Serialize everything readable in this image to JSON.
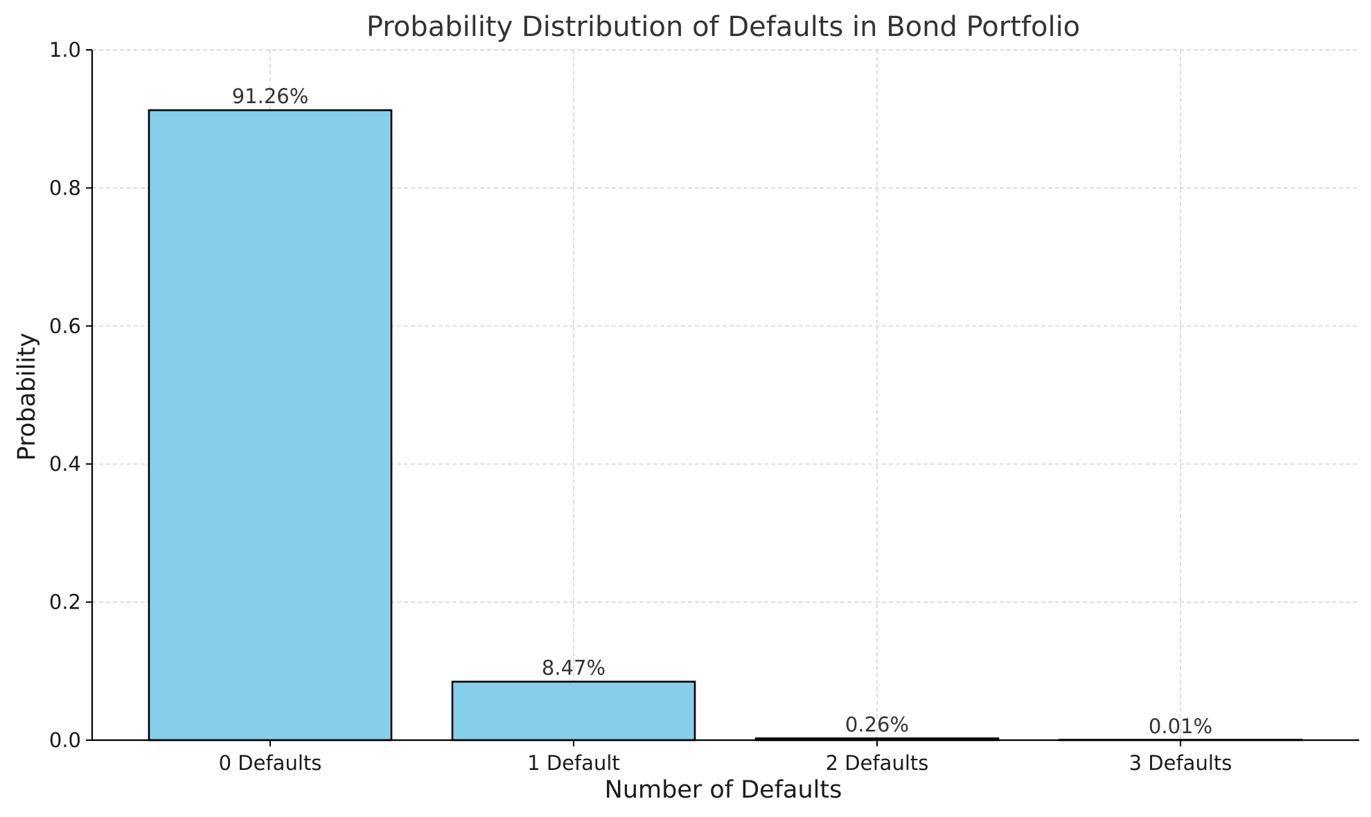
{
  "chart_data": {
    "type": "bar",
    "title": "Probability Distribution of Defaults in Bond Portfolio",
    "xlabel": "Number of Defaults",
    "ylabel": "Probability",
    "categories": [
      "0 Defaults",
      "1 Default",
      "2 Defaults",
      "3 Defaults"
    ],
    "values": [
      0.9126,
      0.0847,
      0.0026,
      0.0001
    ],
    "data_labels": [
      "91.26%",
      "8.47%",
      "0.26%",
      "0.01%"
    ],
    "ylim": [
      0,
      1.0
    ],
    "yticks": [
      0.0,
      0.2,
      0.4,
      0.6,
      0.8,
      1.0
    ],
    "ytick_labels": [
      "0.0",
      "0.2",
      "0.4",
      "0.6",
      "0.8",
      "1.0"
    ],
    "grid": true,
    "bar_color": "#87CEEB",
    "bar_edge_color": "#000000"
  }
}
